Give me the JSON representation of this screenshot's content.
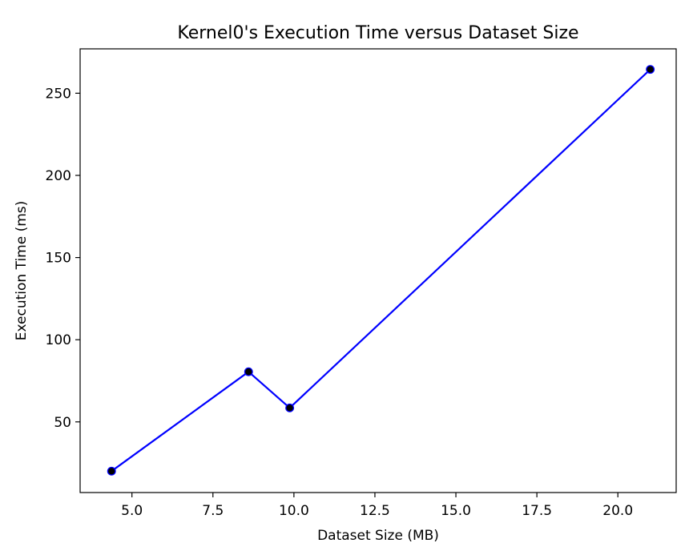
{
  "chart_data": {
    "type": "line",
    "title": "Kernel0's Execution Time versus Dataset Size",
    "xlabel": "Dataset Size (MB)",
    "ylabel": "Execution Time (ms)",
    "xlim": [
      3.4,
      21.8
    ],
    "ylim": [
      7.0,
      277.0
    ],
    "xticks": [
      5.0,
      7.5,
      10.0,
      12.5,
      15.0,
      17.5,
      20.0
    ],
    "xtick_labels": [
      "5.0",
      "7.5",
      "10.0",
      "12.5",
      "15.0",
      "17.5",
      "20.0"
    ],
    "yticks": [
      50,
      100,
      150,
      200,
      250
    ],
    "ytick_labels": [
      "50",
      "100",
      "150",
      "200",
      "250"
    ],
    "grid": false,
    "series": [
      {
        "line_color": "#0000ff",
        "marker_color": "#000000",
        "x": [
          4.37,
          8.6,
          9.87,
          21.0
        ],
        "y": [
          20.0,
          80.5,
          58.5,
          264.5
        ]
      }
    ]
  }
}
